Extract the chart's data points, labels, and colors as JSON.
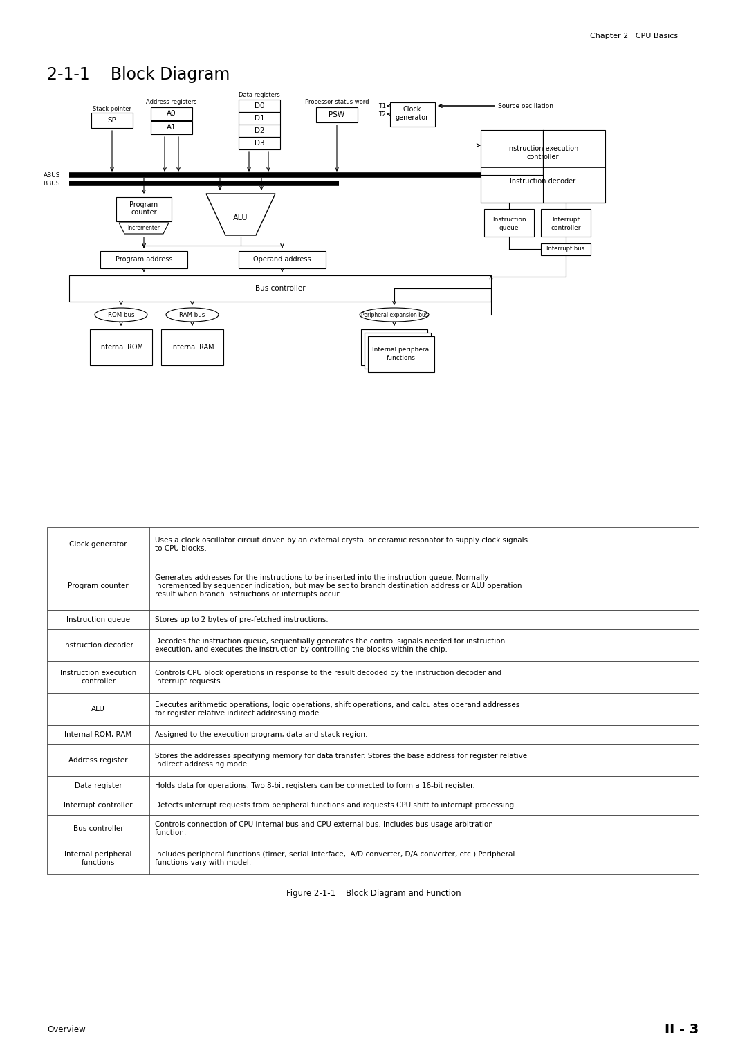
{
  "bg_color": "#ffffff",
  "page_header": "Chapter 2   CPU Basics",
  "section_title": "2-1-1    Block Diagram",
  "figure_caption": "Figure 2-1-1    Block Diagram and Function",
  "footer_left": "Overview",
  "footer_right": "II - 3",
  "table_rows": [
    [
      "Clock generator",
      "Uses a clock oscillator circuit driven by an external crystal or ceramic resonator to supply clock signals\nto CPU blocks."
    ],
    [
      "Program counter",
      "Generates addresses for the instructions to be inserted into the instruction queue. Normally\nincremented by sequencer indication, but may be set to branch destination address or ALU operation\nresult when branch instructions or interrupts occur."
    ],
    [
      "Instruction queue",
      "Stores up to 2 bytes of pre-fetched instructions."
    ],
    [
      "Instruction decoder",
      "Decodes the instruction queue, sequentially generates the control signals needed for instruction\nexecution, and executes the instruction by controlling the blocks within the chip."
    ],
    [
      "Instruction execution\ncontroller",
      "Controls CPU block operations in response to the result decoded by the instruction decoder and\ninterrupt requests."
    ],
    [
      "ALU",
      "Executes arithmetic operations, logic operations, shift operations, and calculates operand addresses\nfor register relative indirect addressing mode."
    ],
    [
      "Internal ROM, RAM",
      "Assigned to the execution program, data and stack region."
    ],
    [
      "Address register",
      "Stores the addresses specifying memory for data transfer. Stores the base address for register relative\nindirect addressing mode."
    ],
    [
      "Data register",
      "Holds data for operations. Two 8-bit registers can be connected to form a 16-bit register."
    ],
    [
      "Interrupt controller",
      "Detects interrupt requests from peripheral functions and requests CPU shift to interrupt processing."
    ],
    [
      "Bus controller",
      "Controls connection of CPU internal bus and CPU external bus. Includes bus usage arbitration\nfunction."
    ],
    [
      "Internal peripheral\nfunctions",
      "Includes peripheral functions (timer, serial interface,  A/D converter, D/A converter, etc.) Peripheral\nfunctions vary with model."
    ]
  ]
}
